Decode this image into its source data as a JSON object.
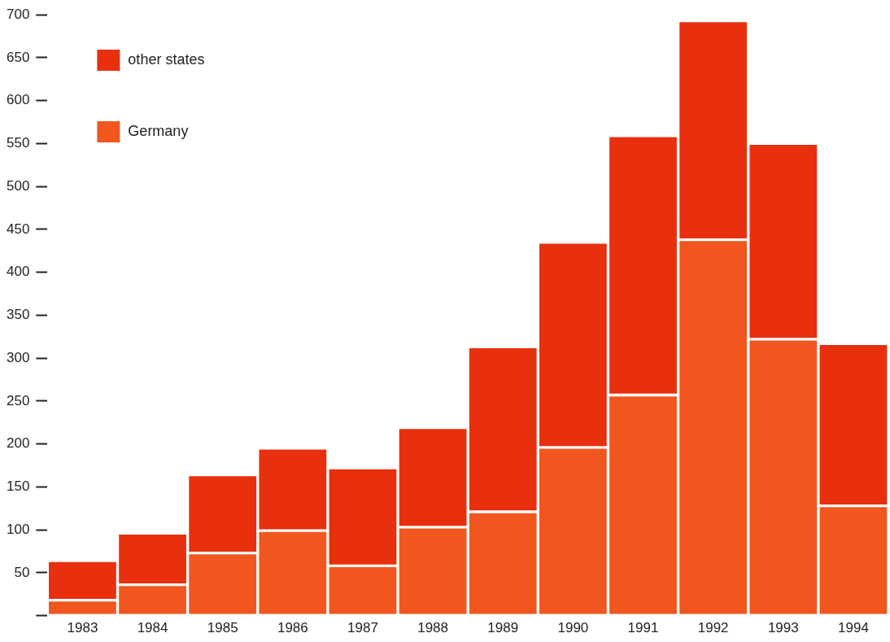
{
  "chart_data": {
    "type": "bar",
    "stacked": true,
    "categories": [
      "1983",
      "1984",
      "1985",
      "1986",
      "1987",
      "1988",
      "1989",
      "1990",
      "1991",
      "1992",
      "1993",
      "1994"
    ],
    "series": [
      {
        "name": "Germany",
        "color": "#f1561f",
        "values": [
          18,
          36,
          73,
          99,
          58,
          103,
          121,
          196,
          257,
          438,
          322,
          128
        ]
      },
      {
        "name": "other states",
        "color": "#e8300e",
        "values": [
          46,
          60,
          91,
          96,
          114,
          116,
          192,
          239,
          302,
          255,
          228,
          189
        ]
      }
    ],
    "ylim": [
      0,
      700
    ],
    "yticks": [
      {
        "value": 0,
        "label": null
      },
      50,
      100,
      150,
      200,
      250,
      300,
      350,
      400,
      450,
      500,
      550,
      600,
      650,
      700
    ],
    "grid": false,
    "legend": "top left"
  }
}
